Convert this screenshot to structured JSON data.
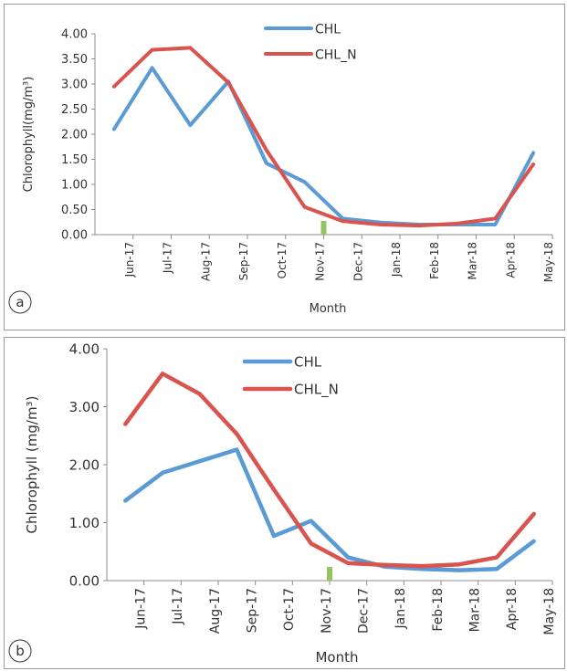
{
  "chart_data": [
    {
      "panel_label": "a",
      "type": "line",
      "xlabel": "Month",
      "ylabel": "Chlorophyll(mg/m³)",
      "ylim": [
        0,
        4
      ],
      "yticks": [
        "0.00",
        "0.50",
        "1.00",
        "1.50",
        "2.00",
        "2.50",
        "3.00",
        "3.50",
        "4.00"
      ],
      "xticks": [
        "Jun-17",
        "Jul-17",
        "Aug-17",
        "Sep-17",
        "Oct-17",
        "Nov-17",
        "Dec-17",
        "Jan-18",
        "Feb-18",
        "Mar-18",
        "Apr-18",
        "May-18"
      ],
      "grid": false,
      "legend": "top-center",
      "marker_month": "Nov-17",
      "series": [
        {
          "name": "CHL",
          "color": "#5b9bd5",
          "values": [
            2.1,
            3.32,
            2.18,
            3.05,
            1.42,
            1.05,
            0.32,
            0.24,
            0.2,
            0.2,
            0.2,
            1.63
          ]
        },
        {
          "name": "CHL_N",
          "color": "#d9534f",
          "values": [
            2.95,
            3.68,
            3.72,
            3.03,
            1.68,
            0.55,
            0.27,
            0.2,
            0.18,
            0.22,
            0.32,
            1.4
          ]
        }
      ]
    },
    {
      "panel_label": "b",
      "type": "line",
      "xlabel": "Month",
      "ylabel": "Chlorophyll (mg/m³)",
      "ylim": [
        0,
        4
      ],
      "yticks": [
        "0.00",
        "1.00",
        "2.00",
        "3.00",
        "4.00"
      ],
      "xticks": [
        "Jun-17",
        "Jul-17",
        "Aug-17",
        "Sep-17",
        "Oct-17",
        "Nov-17",
        "Dec-17",
        "Jan-18",
        "Feb-18",
        "Mar-18",
        "Apr-18",
        "May-18"
      ],
      "grid": false,
      "legend": "top-center",
      "marker_month": "Nov-17",
      "series": [
        {
          "name": "CHL",
          "color": "#5b9bd5",
          "values": [
            1.38,
            1.86,
            2.06,
            2.26,
            0.77,
            1.03,
            0.4,
            0.24,
            0.2,
            0.18,
            0.2,
            0.68
          ]
        },
        {
          "name": "CHL_N",
          "color": "#d9534f",
          "values": [
            2.7,
            3.57,
            3.22,
            2.53,
            1.57,
            0.64,
            0.3,
            0.27,
            0.25,
            0.28,
            0.4,
            1.15
          ]
        }
      ]
    }
  ]
}
